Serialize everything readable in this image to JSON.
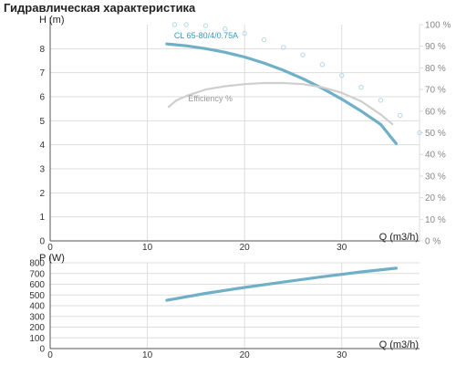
{
  "heading": "Гидравлическая характеристика",
  "colors": {
    "pump_curve": "#6fb0c8",
    "pump_label": "#3a98bf",
    "efficiency_curve": "#cfcfcf",
    "efficiency_label": "#999999",
    "power_curve": "#cfcfcf",
    "grid": "#dddddd",
    "axis": "#555555",
    "dotted_marker": "#b5d8e8"
  },
  "chart_data": [
    {
      "type": "line",
      "ylabel": "H (m)",
      "xlabel": "Q (m3/h)",
      "xlim": [
        0,
        38
      ],
      "ylim": [
        0,
        9
      ],
      "x_ticks": [
        "0",
        "10",
        "20",
        "30"
      ],
      "y_ticks": [
        "0",
        "1",
        "2",
        "3",
        "4",
        "5",
        "6",
        "7",
        "8"
      ],
      "y2lim": [
        0,
        100
      ],
      "y2_ticks": [
        "0 %",
        "10 %",
        "20 %",
        "30 %",
        "40 %",
        "50 %",
        "60 %",
        "70 %",
        "80 %",
        "90 %",
        "100 %"
      ],
      "grid": true,
      "series": [
        {
          "name": "CL 65-80/4/0.75A",
          "axis": "left",
          "style": "solid",
          "x": [
            12,
            14,
            16,
            18,
            20,
            22,
            24,
            26,
            28,
            30,
            32,
            34,
            35.6
          ],
          "y": [
            8.2,
            8.12,
            8.0,
            7.85,
            7.65,
            7.4,
            7.1,
            6.75,
            6.35,
            5.9,
            5.4,
            4.85,
            4.05
          ]
        },
        {
          "name": "Efficiency %",
          "axis": "right",
          "style": "solid",
          "x": [
            12.2,
            13,
            14,
            16,
            18,
            20,
            22,
            24,
            26,
            28,
            30,
            32,
            34,
            35.2
          ],
          "y": [
            62,
            65,
            67,
            70,
            71.5,
            72.5,
            73,
            73,
            72.5,
            71,
            68.5,
            64.5,
            58.5,
            54
          ]
        },
        {
          "axis": "right",
          "style": "dotted",
          "x": [
            12.8,
            14,
            16,
            18,
            20,
            22,
            24,
            26,
            28,
            30,
            32,
            34,
            36,
            38
          ],
          "y": [
            100,
            100,
            99.5,
            98,
            96,
            93,
            89.5,
            86,
            81.5,
            76.5,
            71,
            65,
            58,
            50
          ]
        }
      ],
      "annotations": [
        "CL 65-80/4/0.75A",
        "Efficiency %"
      ]
    },
    {
      "type": "line",
      "ylabel": "P (W)",
      "xlabel": "Q (m3/h)",
      "xlim": [
        0,
        38
      ],
      "ylim": [
        0,
        800
      ],
      "x_ticks": [
        "0",
        "10",
        "20",
        "30"
      ],
      "y_ticks": [
        "0",
        "100",
        "200",
        "300",
        "400",
        "500",
        "600",
        "700",
        "800"
      ],
      "grid": true,
      "series": [
        {
          "axis": "left",
          "style": "solid",
          "x": [
            12,
            16,
            20,
            24,
            28,
            32,
            35.6
          ],
          "y": [
            450,
            515,
            570,
            620,
            670,
            715,
            750
          ]
        }
      ]
    }
  ]
}
